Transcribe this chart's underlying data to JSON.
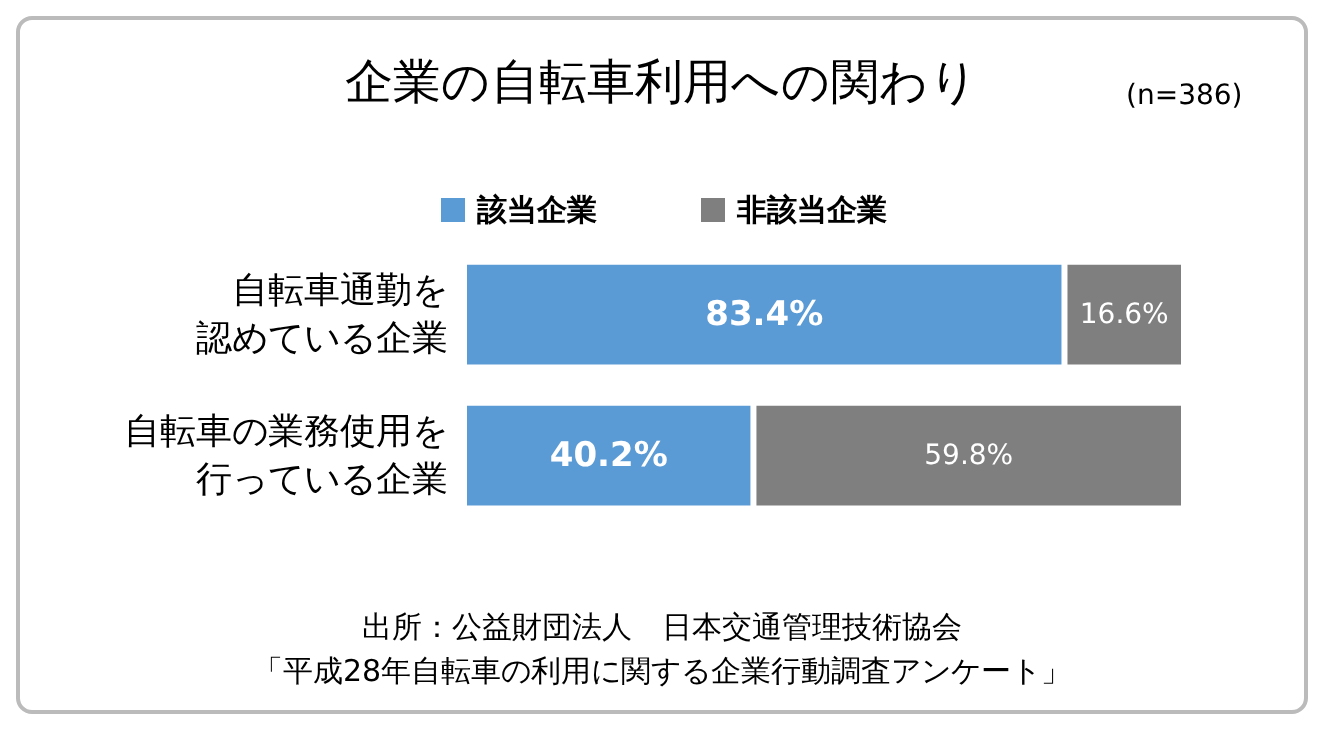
{
  "chart_data": {
    "type": "bar",
    "orientation": "horizontal",
    "stacked": true,
    "title": "企業の自転車利用への関わり",
    "subtitle": "(n=386)",
    "categories": [
      "自転車通勤を認めている企業",
      "自転車の業務使用を行っている企業"
    ],
    "series": [
      {
        "name": "該当企業",
        "color": "#5b9bd5",
        "values": [
          83.4,
          40.2
        ],
        "value_labels": [
          "83.4%",
          "40.2%"
        ]
      },
      {
        "name": "非該当企業",
        "color": "#7f7f7f",
        "values": [
          16.6,
          59.8
        ],
        "value_labels": [
          "16.6%",
          "59.8%"
        ]
      }
    ],
    "legend": "top",
    "annotations": [
      "出所：公益財団法人　日本交通管理技術協会",
      "「平成28年自転車の利用に関する企業行動調査アンケート」"
    ]
  }
}
